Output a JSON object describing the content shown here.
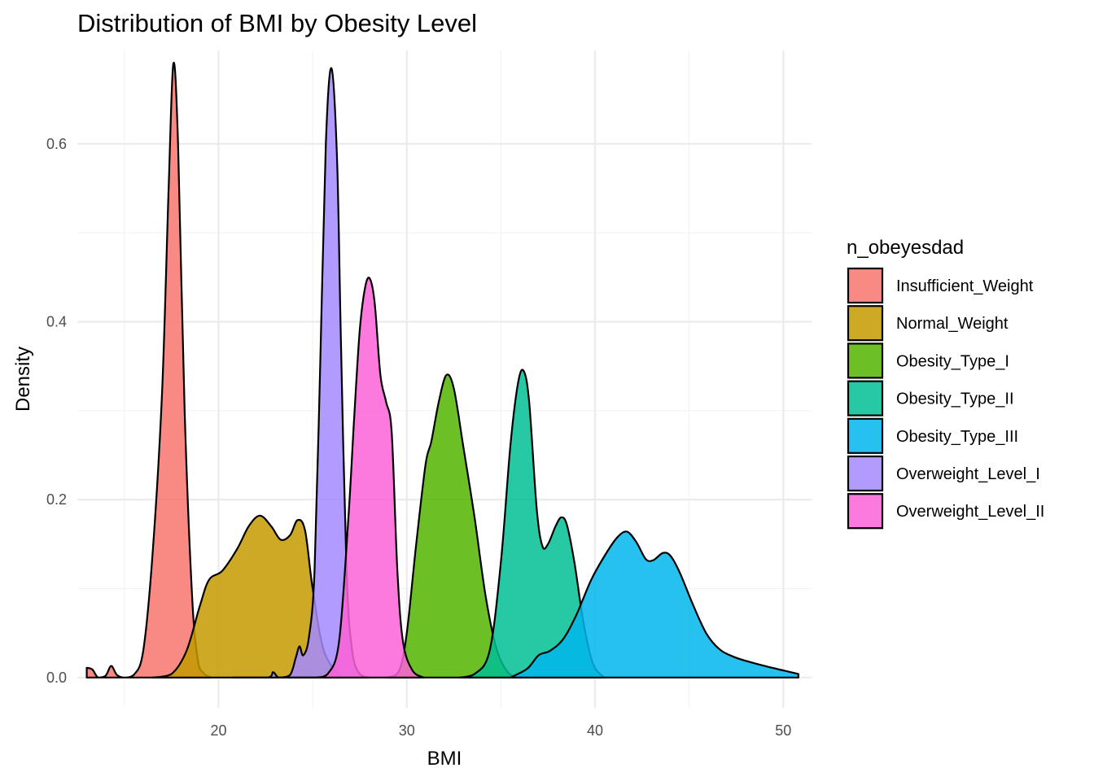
{
  "chart_data": {
    "type": "area",
    "title": "Distribution of BMI by Obesity Level",
    "xlabel": "BMI",
    "ylabel": "Density",
    "xlim": [
      12.5,
      51.5
    ],
    "ylim": [
      -0.034,
      0.705
    ],
    "x_ticks": [
      20,
      30,
      40,
      50
    ],
    "x_minor_ticks": [
      15,
      25,
      35,
      45
    ],
    "y_ticks": [
      0.0,
      0.2,
      0.4,
      0.6
    ],
    "y_tick_labels": [
      "0.0",
      "0.2",
      "0.4",
      "0.6"
    ],
    "y_minor_ticks": [
      0.1,
      0.3,
      0.5
    ],
    "grid": true,
    "legend": {
      "title": "n_obeyesdad",
      "position": "right"
    },
    "series": [
      {
        "name": "Insufficient_Weight",
        "color": "#F8766D",
        "points": [
          [
            13.0,
            0.011
          ],
          [
            13.3,
            0.009
          ],
          [
            13.6,
            0.0
          ],
          [
            14.0,
            0.002
          ],
          [
            14.3,
            0.013
          ],
          [
            14.6,
            0.003
          ],
          [
            15.0,
            0.0
          ],
          [
            15.5,
            0.003
          ],
          [
            16.0,
            0.03
          ],
          [
            16.5,
            0.14
          ],
          [
            17.0,
            0.32
          ],
          [
            17.35,
            0.55
          ],
          [
            17.6,
            0.69
          ],
          [
            17.85,
            0.6
          ],
          [
            18.2,
            0.3
          ],
          [
            18.6,
            0.09
          ],
          [
            18.9,
            0.02
          ],
          [
            19.2,
            0.005
          ],
          [
            19.6,
            0.0
          ]
        ]
      },
      {
        "name": "Normal_Weight",
        "color": "#C49A00",
        "points": [
          [
            16.5,
            0.0
          ],
          [
            17.5,
            0.004
          ],
          [
            18.3,
            0.03
          ],
          [
            19.0,
            0.08
          ],
          [
            19.5,
            0.11
          ],
          [
            20.2,
            0.12
          ],
          [
            21.0,
            0.145
          ],
          [
            21.6,
            0.17
          ],
          [
            22.2,
            0.182
          ],
          [
            22.8,
            0.17
          ],
          [
            23.3,
            0.155
          ],
          [
            23.8,
            0.16
          ],
          [
            24.2,
            0.177
          ],
          [
            24.6,
            0.165
          ],
          [
            25.0,
            0.1
          ],
          [
            25.6,
            0.03
          ],
          [
            26.5,
            0.0
          ]
        ]
      },
      {
        "name": "Obesity_Type_I",
        "color": "#53B400",
        "points": [
          [
            29.0,
            0.0
          ],
          [
            29.6,
            0.008
          ],
          [
            30.0,
            0.05
          ],
          [
            30.5,
            0.15
          ],
          [
            31.0,
            0.24
          ],
          [
            31.3,
            0.265
          ],
          [
            31.7,
            0.31
          ],
          [
            32.1,
            0.34
          ],
          [
            32.5,
            0.325
          ],
          [
            33.0,
            0.26
          ],
          [
            33.6,
            0.18
          ],
          [
            34.2,
            0.09
          ],
          [
            34.8,
            0.03
          ],
          [
            35.5,
            0.003
          ],
          [
            36.2,
            0.0
          ]
        ]
      },
      {
        "name": "Obesity_Type_II",
        "color": "#00C094",
        "points": [
          [
            32.8,
            0.0
          ],
          [
            33.6,
            0.004
          ],
          [
            34.4,
            0.03
          ],
          [
            35.0,
            0.13
          ],
          [
            35.5,
            0.26
          ],
          [
            35.9,
            0.33
          ],
          [
            36.2,
            0.345
          ],
          [
            36.5,
            0.31
          ],
          [
            36.9,
            0.19
          ],
          [
            37.2,
            0.148
          ],
          [
            37.5,
            0.15
          ],
          [
            37.9,
            0.17
          ],
          [
            38.2,
            0.18
          ],
          [
            38.5,
            0.172
          ],
          [
            38.9,
            0.13
          ],
          [
            39.4,
            0.06
          ],
          [
            39.9,
            0.015
          ],
          [
            40.5,
            0.0
          ]
        ]
      },
      {
        "name": "Obesity_Type_III",
        "color": "#00B6EB",
        "points": [
          [
            35.5,
            0.0
          ],
          [
            36.4,
            0.01
          ],
          [
            37.0,
            0.025
          ],
          [
            37.6,
            0.03
          ],
          [
            38.3,
            0.043
          ],
          [
            39.0,
            0.07
          ],
          [
            39.8,
            0.11
          ],
          [
            40.6,
            0.14
          ],
          [
            41.2,
            0.158
          ],
          [
            41.7,
            0.164
          ],
          [
            42.2,
            0.152
          ],
          [
            42.7,
            0.133
          ],
          [
            43.1,
            0.132
          ],
          [
            43.6,
            0.14
          ],
          [
            44.0,
            0.137
          ],
          [
            44.5,
            0.118
          ],
          [
            45.2,
            0.082
          ],
          [
            45.9,
            0.05
          ],
          [
            46.6,
            0.032
          ],
          [
            47.4,
            0.023
          ],
          [
            48.3,
            0.017
          ],
          [
            49.2,
            0.012
          ],
          [
            50.0,
            0.008
          ],
          [
            50.8,
            0.004
          ]
        ]
      },
      {
        "name": "Overweight_Level_I",
        "color": "#A58AFF",
        "points": [
          [
            20.8,
            0.0
          ],
          [
            22.6,
            0.0
          ],
          [
            22.9,
            0.006
          ],
          [
            23.2,
            0.0
          ],
          [
            23.8,
            0.003
          ],
          [
            24.1,
            0.022
          ],
          [
            24.3,
            0.035
          ],
          [
            24.5,
            0.025
          ],
          [
            24.8,
            0.045
          ],
          [
            25.1,
            0.12
          ],
          [
            25.4,
            0.35
          ],
          [
            25.7,
            0.6
          ],
          [
            26.0,
            0.685
          ],
          [
            26.3,
            0.58
          ],
          [
            26.5,
            0.38
          ],
          [
            26.8,
            0.12
          ],
          [
            27.1,
            0.03
          ],
          [
            27.5,
            0.004
          ],
          [
            28.0,
            0.0
          ]
        ]
      },
      {
        "name": "Overweight_Level_II",
        "color": "#FB61D7",
        "points": [
          [
            23.5,
            0.0
          ],
          [
            24.4,
            0.0
          ],
          [
            25.2,
            0.0
          ],
          [
            25.8,
            0.004
          ],
          [
            26.4,
            0.04
          ],
          [
            26.9,
            0.18
          ],
          [
            27.2,
            0.29
          ],
          [
            27.5,
            0.39
          ],
          [
            27.8,
            0.44
          ],
          [
            28.05,
            0.448
          ],
          [
            28.3,
            0.42
          ],
          [
            28.6,
            0.34
          ],
          [
            28.9,
            0.31
          ],
          [
            29.2,
            0.275
          ],
          [
            29.5,
            0.12
          ],
          [
            29.8,
            0.04
          ],
          [
            30.3,
            0.008
          ],
          [
            30.9,
            0.0
          ]
        ]
      }
    ]
  }
}
